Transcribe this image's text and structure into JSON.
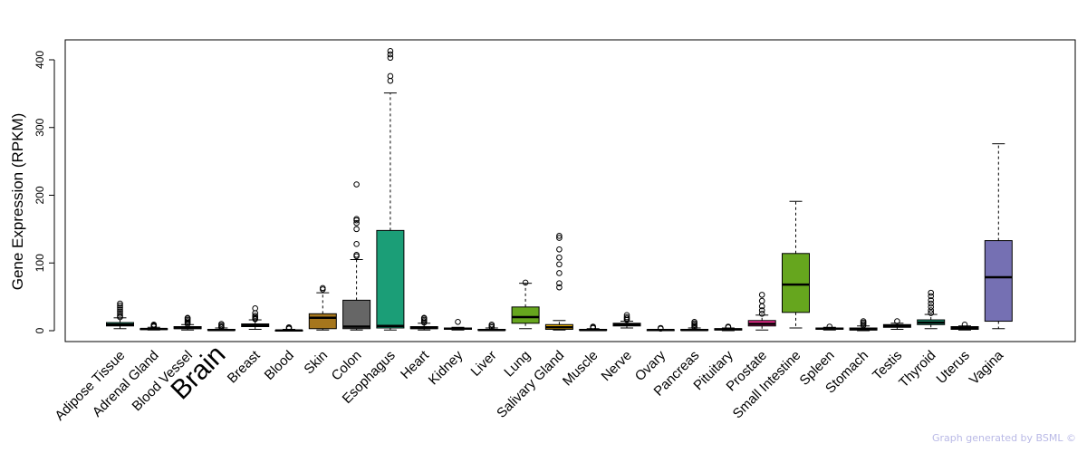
{
  "credit": "Graph generated by BSML ©",
  "chart_data": {
    "type": "box",
    "ylabel": "Gene Expression (RPKM)",
    "ylim": [
      0,
      400
    ],
    "yticks": [
      0,
      100,
      200,
      300,
      400
    ],
    "highlight": "Brain",
    "highlight_color": "#ff0000",
    "series": [
      {
        "category": "Adipose Tissue",
        "color": "#1b9e77",
        "min": 3,
        "q1": 7,
        "median": 9,
        "q3": 12,
        "max": 19,
        "outliers": [
          20,
          22,
          25,
          28,
          31,
          34,
          37,
          40
        ]
      },
      {
        "category": "Adrenal Gland",
        "color": "#1b9e77",
        "min": 1,
        "q1": 2,
        "median": 2.5,
        "q3": 3,
        "max": 5,
        "outliers": [
          6,
          7,
          8,
          9
        ]
      },
      {
        "category": "Blood Vessel",
        "color": "#1b9e77",
        "min": 1,
        "q1": 3,
        "median": 4,
        "q3": 6,
        "max": 9,
        "outliers": [
          10,
          12,
          14,
          16,
          18,
          19
        ]
      },
      {
        "category": "Brain",
        "color": "#1b9e77",
        "min": 0,
        "q1": 0.5,
        "median": 1,
        "q3": 2,
        "max": 4,
        "outliers": [
          5,
          6,
          8,
          10
        ]
      },
      {
        "category": "Breast",
        "color": "#1b9e77",
        "min": 2,
        "q1": 6,
        "median": 8,
        "q3": 10,
        "max": 16,
        "outliers": [
          17,
          18,
          20,
          22,
          26,
          33
        ]
      },
      {
        "category": "Blood",
        "color": "#1b9e77",
        "min": 0,
        "q1": 0,
        "median": 0.3,
        "q3": 0.8,
        "max": 2,
        "outliers": [
          3,
          4,
          5
        ]
      },
      {
        "category": "Skin",
        "color": "#a6761d",
        "min": 1,
        "q1": 3,
        "median": 19,
        "q3": 25,
        "max": 56,
        "outliers": [
          61,
          63
        ]
      },
      {
        "category": "Colon",
        "color": "#666666",
        "min": 1,
        "q1": 3,
        "median": 6,
        "q3": 45,
        "max": 105,
        "outliers": [
          110,
          112,
          128,
          150,
          159,
          163,
          165,
          216
        ]
      },
      {
        "category": "Esophagus",
        "color": "#1b9e77",
        "min": 1,
        "q1": 4,
        "median": 7,
        "q3": 148,
        "max": 351,
        "outliers": [
          369,
          376,
          403,
          408,
          413
        ]
      },
      {
        "category": "Heart",
        "color": "#1b9e77",
        "min": 1,
        "q1": 3,
        "median": 4,
        "q3": 6,
        "max": 11,
        "outliers": [
          12,
          14,
          16,
          18,
          19
        ]
      },
      {
        "category": "Kidney",
        "color": "#1b9e77",
        "min": 1,
        "q1": 2,
        "median": 3,
        "q3": 4,
        "max": 5,
        "outliers": [
          13
        ]
      },
      {
        "category": "Liver",
        "color": "#1b9e77",
        "min": 0,
        "q1": 0.5,
        "median": 1,
        "q3": 2,
        "max": 4,
        "outliers": [
          5,
          7,
          9
        ]
      },
      {
        "category": "Lung",
        "color": "#66a61e",
        "min": 3,
        "q1": 11,
        "median": 20,
        "q3": 35,
        "max": 70,
        "outliers": [
          71
        ]
      },
      {
        "category": "Salivary Gland",
        "color": "#e6ab02",
        "min": 1,
        "q1": 2,
        "median": 5,
        "q3": 9,
        "max": 15,
        "outliers": [
          64,
          70,
          85,
          98,
          108,
          120,
          137,
          140
        ]
      },
      {
        "category": "Muscle",
        "color": "#1b9e77",
        "min": 0,
        "q1": 0.5,
        "median": 1,
        "q3": 2,
        "max": 3,
        "outliers": [
          4,
          5,
          6
        ]
      },
      {
        "category": "Nerve",
        "color": "#1b9e77",
        "min": 4,
        "q1": 7,
        "median": 9,
        "q3": 11,
        "max": 14,
        "outliers": [
          16,
          18,
          20,
          23
        ]
      },
      {
        "category": "Ovary",
        "color": "#1b9e77",
        "min": 0,
        "q1": 0.5,
        "median": 1,
        "q3": 1.5,
        "max": 2,
        "outliers": [
          3,
          4
        ]
      },
      {
        "category": "Pancreas",
        "color": "#1b9e77",
        "min": 0,
        "q1": 0.5,
        "median": 1,
        "q3": 2,
        "max": 4,
        "outliers": [
          5,
          7,
          9,
          11,
          13
        ]
      },
      {
        "category": "Pituitary",
        "color": "#1b9e77",
        "min": 0,
        "q1": 1,
        "median": 2,
        "q3": 3,
        "max": 4,
        "outliers": [
          5,
          6
        ]
      },
      {
        "category": "Prostate",
        "color": "#e7298a",
        "min": 1,
        "q1": 7,
        "median": 10,
        "q3": 15,
        "max": 23,
        "outliers": [
          25,
          30,
          36,
          44,
          53
        ]
      },
      {
        "category": "Small Intestine",
        "color": "#66a61e",
        "min": 4,
        "q1": 27,
        "median": 68,
        "q3": 114,
        "max": 191,
        "outliers": []
      },
      {
        "category": "Spleen",
        "color": "#1b9e77",
        "min": 1,
        "q1": 2,
        "median": 3,
        "q3": 4,
        "max": 5,
        "outliers": [
          6
        ]
      },
      {
        "category": "Stomach",
        "color": "#1b9e77",
        "min": 0,
        "q1": 1,
        "median": 2,
        "q3": 4,
        "max": 7,
        "outliers": [
          8,
          10,
          12,
          14
        ]
      },
      {
        "category": "Testis",
        "color": "#1b9e77",
        "min": 2,
        "q1": 5,
        "median": 7,
        "q3": 9,
        "max": 11,
        "outliers": [
          14
        ]
      },
      {
        "category": "Thyroid",
        "color": "#1b9e77",
        "min": 3,
        "q1": 9,
        "median": 12,
        "q3": 16,
        "max": 24,
        "outliers": [
          26,
          30,
          35,
          40,
          45,
          51,
          56
        ]
      },
      {
        "category": "Uterus",
        "color": "#1b9e77",
        "min": 1,
        "q1": 2,
        "median": 4,
        "q3": 6,
        "max": 7,
        "outliers": [
          9
        ]
      },
      {
        "category": "Vagina",
        "color": "#7570b3",
        "min": 3,
        "q1": 14,
        "median": 79,
        "q3": 133,
        "max": 276,
        "outliers": []
      }
    ]
  }
}
